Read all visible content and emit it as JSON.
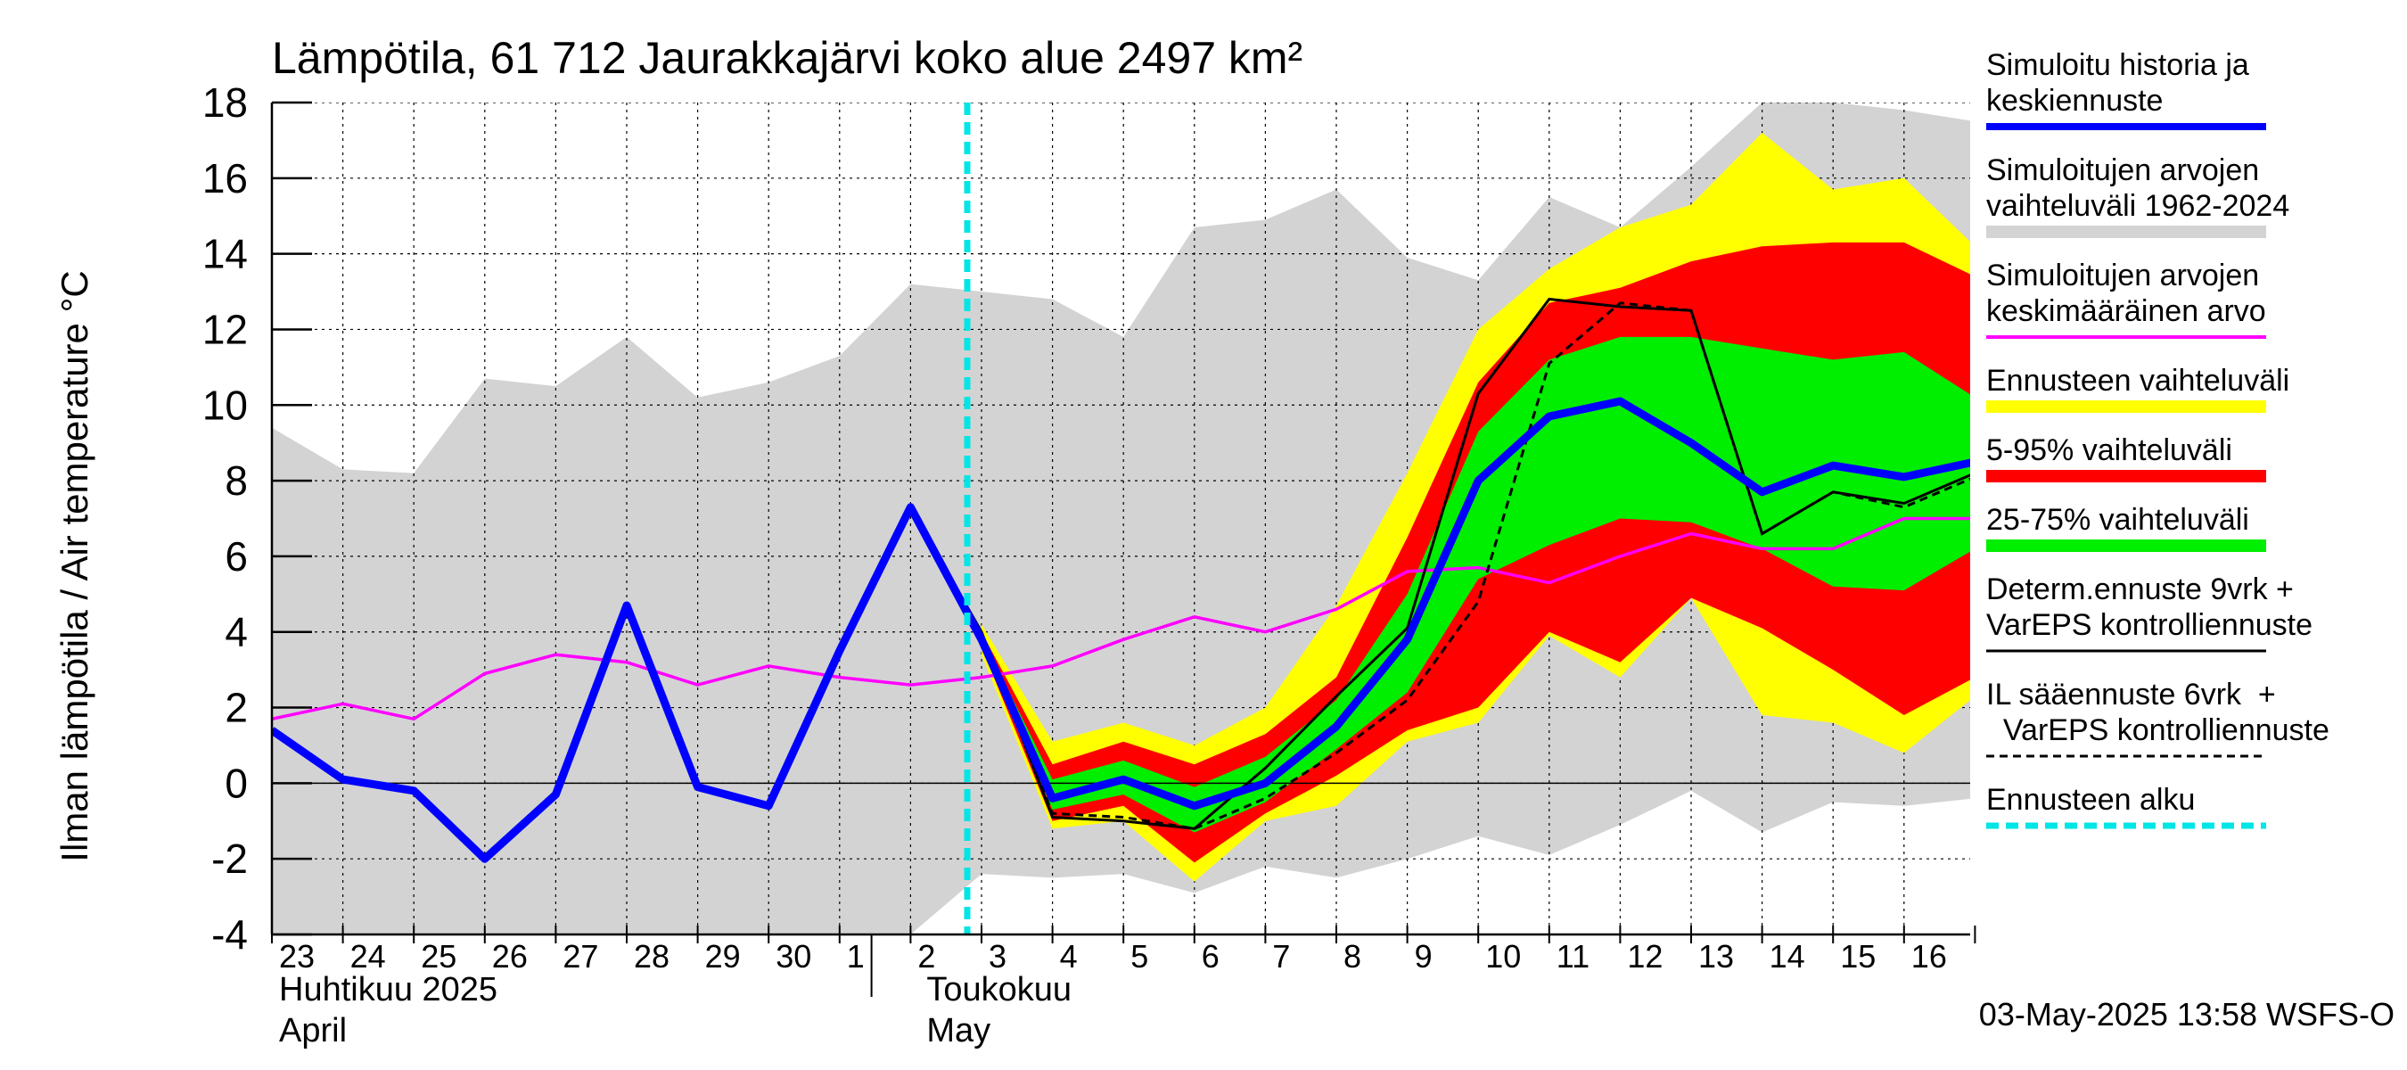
{
  "chart_data": {
    "type": "area",
    "title": "Lämpötila, 61 712 Jaurakkajärvi koko alue 2497 km²",
    "ylabel": "Ilman lämpötila / Air temperature   °C",
    "ylim": [
      -4,
      18
    ],
    "yticks": [
      -4,
      -2,
      0,
      2,
      4,
      6,
      8,
      10,
      12,
      14,
      16,
      18
    ],
    "grid": true,
    "legend_position": "right",
    "x_days": [
      "23",
      "24",
      "25",
      "26",
      "27",
      "28",
      "29",
      "30",
      "1",
      "2",
      "3",
      "4",
      "5",
      "6",
      "7",
      "8",
      "9",
      "10",
      "11",
      "12",
      "13",
      "14",
      "15",
      "16"
    ],
    "x_month_labels": [
      {
        "fi": "Huhtikuu  2025",
        "en": "April"
      },
      {
        "fi": "Toukokuu",
        "en": "May"
      }
    ],
    "forecast_start": "3",
    "timestamp": "03-May-2025 13:58 WSFS-O",
    "colors": {
      "history": "#0000ff",
      "range_hist": "#d3d3d3",
      "mean_hist": "#ff00ff",
      "ens_range": "#ffff00",
      "p5_95": "#ff0000",
      "p25_75": "#00ee00",
      "determ": "#000000",
      "forecast_start": "#00e5e5"
    },
    "series": [
      {
        "name": "Simuloitu historia ja keskiennuste",
        "role": "history",
        "points": [
          [
            "23",
            1.4
          ],
          [
            "24",
            0.1
          ],
          [
            "25",
            -0.2
          ],
          [
            "26",
            -2.0
          ],
          [
            "27",
            -0.3
          ],
          [
            "28",
            4.7
          ],
          [
            "29",
            -0.1
          ],
          [
            "30",
            -0.6
          ],
          [
            "1",
            3.5
          ],
          [
            "2",
            7.3
          ],
          [
            "3",
            3.8
          ],
          [
            "4",
            -0.4
          ],
          [
            "5",
            0.1
          ],
          [
            "6",
            -0.6
          ],
          [
            "7",
            0.0
          ],
          [
            "8",
            1.5
          ],
          [
            "9",
            3.8
          ],
          [
            "10",
            8.0
          ],
          [
            "11",
            9.7
          ],
          [
            "12",
            10.1
          ],
          [
            "13",
            9.0
          ],
          [
            "14",
            7.7
          ],
          [
            "15",
            8.4
          ],
          [
            "16",
            8.1
          ],
          [
            "17",
            8.5
          ]
        ]
      },
      {
        "name": "Simuloitujen arvojen vaihteluväli 1962-2024",
        "role": "range_hist",
        "upper": [
          [
            "23",
            9.4
          ],
          [
            "24",
            8.3
          ],
          [
            "25",
            8.2
          ],
          [
            "26",
            10.7
          ],
          [
            "27",
            10.5
          ],
          [
            "28",
            11.8
          ],
          [
            "29",
            10.2
          ],
          [
            "30",
            10.6
          ],
          [
            "1",
            11.3
          ],
          [
            "2",
            13.2
          ],
          [
            "3",
            13.0
          ],
          [
            "4",
            12.8
          ],
          [
            "5",
            11.8
          ],
          [
            "6",
            14.7
          ],
          [
            "7",
            14.9
          ],
          [
            "8",
            15.7
          ],
          [
            "9",
            13.9
          ],
          [
            "10",
            13.3
          ],
          [
            "11",
            15.5
          ],
          [
            "12",
            14.7
          ],
          [
            "13",
            16.3
          ],
          [
            "14",
            18.0
          ],
          [
            "15",
            18.0
          ],
          [
            "16",
            17.8
          ],
          [
            "17",
            17.5
          ]
        ],
        "lower": [
          [
            "23",
            -4.0
          ],
          [
            "24",
            -4.0
          ],
          [
            "25",
            -4.0
          ],
          [
            "26",
            -4.0
          ],
          [
            "27",
            -4.0
          ],
          [
            "28",
            -4.0
          ],
          [
            "29",
            -4.0
          ],
          [
            "30",
            -4.0
          ],
          [
            "1",
            -4.0
          ],
          [
            "2",
            -4.0
          ],
          [
            "3",
            -2.4
          ],
          [
            "4",
            -2.5
          ],
          [
            "5",
            -2.4
          ],
          [
            "6",
            -2.9
          ],
          [
            "7",
            -2.2
          ],
          [
            "8",
            -2.5
          ],
          [
            "9",
            -2.0
          ],
          [
            "10",
            -1.4
          ],
          [
            "11",
            -1.9
          ],
          [
            "12",
            -1.1
          ],
          [
            "13",
            -0.2
          ],
          [
            "14",
            -1.3
          ],
          [
            "15",
            -0.5
          ],
          [
            "16",
            -0.6
          ],
          [
            "17",
            -0.4
          ]
        ]
      },
      {
        "name": "Simuloitujen arvojen keskimääräinen arvo",
        "role": "mean_hist",
        "points": [
          [
            "23",
            1.7
          ],
          [
            "24",
            2.1
          ],
          [
            "25",
            1.7
          ],
          [
            "26",
            2.9
          ],
          [
            "27",
            3.4
          ],
          [
            "28",
            3.2
          ],
          [
            "29",
            2.6
          ],
          [
            "30",
            3.1
          ],
          [
            "1",
            2.8
          ],
          [
            "2",
            2.6
          ],
          [
            "3",
            2.8
          ],
          [
            "4",
            3.1
          ],
          [
            "5",
            3.8
          ],
          [
            "6",
            4.4
          ],
          [
            "7",
            4.0
          ],
          [
            "8",
            4.6
          ],
          [
            "9",
            5.6
          ],
          [
            "10",
            5.7
          ],
          [
            "11",
            5.3
          ],
          [
            "12",
            6.0
          ],
          [
            "13",
            6.6
          ],
          [
            "14",
            6.2
          ],
          [
            "15",
            6.2
          ],
          [
            "16",
            7.0
          ],
          [
            "17",
            7.0
          ]
        ]
      },
      {
        "name": "Ennusteen vaihteluväli",
        "role": "ens_range",
        "upper": [
          [
            "3",
            4.2
          ],
          [
            "4",
            1.1
          ],
          [
            "5",
            1.6
          ],
          [
            "6",
            1.0
          ],
          [
            "7",
            2.0
          ],
          [
            "8",
            4.7
          ],
          [
            "9",
            8.2
          ],
          [
            "10",
            12.0
          ],
          [
            "11",
            13.6
          ],
          [
            "12",
            14.7
          ],
          [
            "13",
            15.3
          ],
          [
            "14",
            17.2
          ],
          [
            "15",
            15.7
          ],
          [
            "16",
            16.0
          ],
          [
            "17",
            14.2
          ]
        ],
        "lower": [
          [
            "3",
            3.4
          ],
          [
            "4",
            -1.2
          ],
          [
            "5",
            -1.0
          ],
          [
            "6",
            -2.6
          ],
          [
            "7",
            -1.0
          ],
          [
            "8",
            -0.6
          ],
          [
            "9",
            1.1
          ],
          [
            "10",
            1.6
          ],
          [
            "11",
            3.9
          ],
          [
            "12",
            2.8
          ],
          [
            "13",
            4.9
          ],
          [
            "14",
            1.8
          ],
          [
            "15",
            1.6
          ],
          [
            "16",
            0.8
          ],
          [
            "17",
            2.3
          ]
        ]
      },
      {
        "name": "5-95% vaihteluväli",
        "role": "p5_95",
        "upper": [
          [
            "3",
            4.0
          ],
          [
            "4",
            0.5
          ],
          [
            "5",
            1.1
          ],
          [
            "6",
            0.5
          ],
          [
            "7",
            1.3
          ],
          [
            "8",
            2.8
          ],
          [
            "9",
            6.5
          ],
          [
            "10",
            10.6
          ],
          [
            "11",
            12.7
          ],
          [
            "12",
            13.1
          ],
          [
            "13",
            13.8
          ],
          [
            "14",
            14.2
          ],
          [
            "15",
            14.3
          ],
          [
            "16",
            14.3
          ],
          [
            "17",
            13.4
          ]
        ],
        "lower": [
          [
            "3",
            3.6
          ],
          [
            "4",
            -1.0
          ],
          [
            "5",
            -0.6
          ],
          [
            "6",
            -2.1
          ],
          [
            "7",
            -0.8
          ],
          [
            "8",
            0.2
          ],
          [
            "9",
            1.4
          ],
          [
            "10",
            2.0
          ],
          [
            "11",
            4.0
          ],
          [
            "12",
            3.2
          ],
          [
            "13",
            4.9
          ],
          [
            "14",
            4.1
          ],
          [
            "15",
            3.0
          ],
          [
            "16",
            1.8
          ],
          [
            "17",
            2.8
          ]
        ]
      },
      {
        "name": "25-75% vaihteluväli",
        "role": "p25_75",
        "upper": [
          [
            "3",
            3.9
          ],
          [
            "4",
            0.1
          ],
          [
            "5",
            0.6
          ],
          [
            "6",
            -0.1
          ],
          [
            "7",
            0.7
          ],
          [
            "8",
            2.2
          ],
          [
            "9",
            5.0
          ],
          [
            "10",
            9.3
          ],
          [
            "11",
            11.2
          ],
          [
            "12",
            11.8
          ],
          [
            "13",
            11.8
          ],
          [
            "14",
            11.5
          ],
          [
            "15",
            11.2
          ],
          [
            "16",
            11.4
          ],
          [
            "17",
            10.2
          ]
        ],
        "lower": [
          [
            "3",
            3.7
          ],
          [
            "4",
            -0.7
          ],
          [
            "5",
            -0.3
          ],
          [
            "6",
            -1.3
          ],
          [
            "7",
            -0.5
          ],
          [
            "8",
            0.9
          ],
          [
            "9",
            2.4
          ],
          [
            "10",
            5.4
          ],
          [
            "11",
            6.3
          ],
          [
            "12",
            7.0
          ],
          [
            "13",
            6.9
          ],
          [
            "14",
            6.2
          ],
          [
            "15",
            5.2
          ],
          [
            "16",
            5.1
          ],
          [
            "17",
            6.2
          ]
        ]
      },
      {
        "name": "Determ.ennuste 9vrk + VarEPS kontrolliennuste",
        "role": "determ",
        "points": [
          [
            "2",
            7.3
          ],
          [
            "3",
            4.0
          ],
          [
            "4",
            -0.9
          ],
          [
            "5",
            -1.0
          ],
          [
            "6",
            -1.2
          ],
          [
            "7",
            0.4
          ],
          [
            "8",
            2.3
          ],
          [
            "9",
            4.1
          ],
          [
            "10",
            10.3
          ],
          [
            "11",
            12.8
          ],
          [
            "12",
            12.6
          ],
          [
            "13",
            12.5
          ],
          [
            "14",
            6.6
          ],
          [
            "15",
            7.7
          ],
          [
            "16",
            7.4
          ],
          [
            "17",
            8.2
          ]
        ]
      },
      {
        "name": "IL sääennuste 6vrk + VarEPS kontrolliennuste",
        "role": "il",
        "points": [
          [
            "2",
            7.3
          ],
          [
            "3",
            3.9
          ],
          [
            "4",
            -0.8
          ],
          [
            "5",
            -0.9
          ],
          [
            "6",
            -1.2
          ],
          [
            "7",
            -0.4
          ],
          [
            "8",
            0.8
          ],
          [
            "9",
            2.2
          ],
          [
            "10",
            4.8
          ],
          [
            "11",
            11.1
          ],
          [
            "12",
            12.7
          ],
          [
            "13",
            12.5
          ],
          [
            "14",
            6.6
          ],
          [
            "15",
            7.7
          ],
          [
            "16",
            7.3
          ],
          [
            "17",
            8.1
          ]
        ]
      }
    ],
    "legend": [
      {
        "lines": [
          "Simuloitu historia ja",
          "keskiennuste"
        ],
        "role": "history"
      },
      {
        "lines": [
          "Simuloitujen arvojen",
          "vaihteluväli 1962-2024"
        ],
        "role": "range_hist"
      },
      {
        "lines": [
          "Simuloitujen arvojen",
          "keskimääräinen arvo"
        ],
        "role": "mean_hist"
      },
      {
        "lines": [
          "Ennusteen vaihteluväli"
        ],
        "role": "ens_range"
      },
      {
        "lines": [
          "5-95% vaihteluväli"
        ],
        "role": "p5_95"
      },
      {
        "lines": [
          "25-75% vaihteluväli"
        ],
        "role": "p25_75"
      },
      {
        "lines": [
          "Determ.ennuste 9vrk +",
          "VarEPS kontrolliennuste"
        ],
        "role": "determ"
      },
      {
        "lines": [
          "IL sääennuste 6vrk  +",
          "  VarEPS kontrolliennuste"
        ],
        "role": "il"
      },
      {
        "lines": [
          "Ennusteen alku"
        ],
        "role": "forecast_start"
      }
    ]
  }
}
